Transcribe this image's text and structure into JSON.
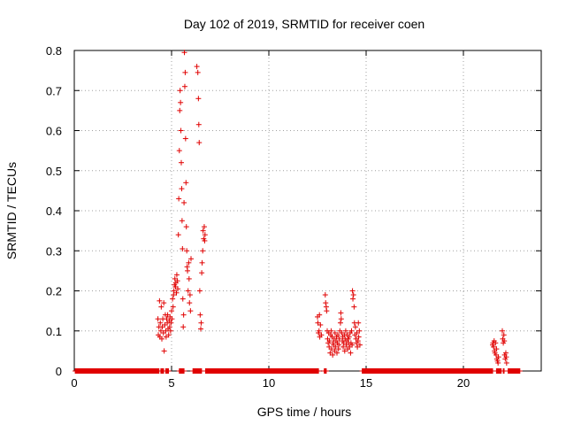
{
  "chart_data": {
    "type": "scatter",
    "title": "Day 102 of 2019, SRMTID for receiver coen",
    "xlabel": "GPS time / hours",
    "ylabel": "SRMTID / TECUs",
    "xlim": [
      0,
      24
    ],
    "ylim": [
      0,
      0.8
    ],
    "x_ticks": [
      0,
      5,
      10,
      15,
      20
    ],
    "x_tick_labels": [
      "0",
      "5",
      "10",
      "15",
      "20"
    ],
    "y_ticks": [
      0,
      0.1,
      0.2,
      0.3,
      0.4,
      0.5,
      0.6,
      0.7,
      0.8
    ],
    "y_tick_labels": [
      "0",
      "0.1",
      "0.2",
      "0.3",
      "0.4",
      "0.5",
      "0.6",
      "0.7",
      "0.8"
    ],
    "grid": true,
    "marker": "+",
    "color": "#e00000",
    "zero_baseline_segments": [
      [
        0.05,
        4.35
      ],
      [
        4.45,
        4.6
      ],
      [
        4.7,
        4.85
      ],
      [
        5.4,
        5.65
      ],
      [
        6.1,
        6.55
      ],
      [
        6.75,
        12.55
      ],
      [
        12.85,
        12.95
      ],
      [
        14.8,
        21.5
      ],
      [
        21.7,
        21.95
      ],
      [
        22.05,
        22.1
      ],
      [
        22.3,
        22.9
      ]
    ],
    "points": [
      [
        4.3,
        0.13
      ],
      [
        4.32,
        0.09
      ],
      [
        4.35,
        0.11
      ],
      [
        4.38,
        0.175
      ],
      [
        4.4,
        0.085
      ],
      [
        4.42,
        0.12
      ],
      [
        4.45,
        0.1
      ],
      [
        4.47,
        0.16
      ],
      [
        4.5,
        0.08
      ],
      [
        4.52,
        0.11
      ],
      [
        4.55,
        0.13
      ],
      [
        4.58,
        0.095
      ],
      [
        4.6,
        0.17
      ],
      [
        4.62,
        0.05
      ],
      [
        4.65,
        0.115
      ],
      [
        4.68,
        0.14
      ],
      [
        4.7,
        0.1
      ],
      [
        4.72,
        0.085
      ],
      [
        4.75,
        0.13
      ],
      [
        4.78,
        0.12
      ],
      [
        4.8,
        0.14
      ],
      [
        4.82,
        0.105
      ],
      [
        4.85,
        0.09
      ],
      [
        4.88,
        0.125
      ],
      [
        4.9,
        0.11
      ],
      [
        4.92,
        0.135
      ],
      [
        4.95,
        0.1
      ],
      [
        4.97,
        0.12
      ],
      [
        5.0,
        0.15
      ],
      [
        5.02,
        0.13
      ],
      [
        5.05,
        0.18
      ],
      [
        5.08,
        0.16
      ],
      [
        5.1,
        0.19
      ],
      [
        5.12,
        0.2
      ],
      [
        5.15,
        0.215
      ],
      [
        5.17,
        0.23
      ],
      [
        5.2,
        0.21
      ],
      [
        5.22,
        0.22
      ],
      [
        5.25,
        0.195
      ],
      [
        5.27,
        0.24
      ],
      [
        5.3,
        0.225
      ],
      [
        5.32,
        0.205
      ],
      [
        5.35,
        0.34
      ],
      [
        5.37,
        0.43
      ],
      [
        5.4,
        0.55
      ],
      [
        5.42,
        0.65
      ],
      [
        5.44,
        0.7
      ],
      [
        5.46,
        0.67
      ],
      [
        5.48,
        0.6
      ],
      [
        5.5,
        0.52
      ],
      [
        5.52,
        0.455
      ],
      [
        5.54,
        0.375
      ],
      [
        5.56,
        0.305
      ],
      [
        5.58,
        0.18
      ],
      [
        5.6,
        0.11
      ],
      [
        5.62,
        0.14
      ],
      [
        5.64,
        0.42
      ],
      [
        5.66,
        0.795
      ],
      [
        5.68,
        0.71
      ],
      [
        5.7,
        0.745
      ],
      [
        5.72,
        0.58
      ],
      [
        5.74,
        0.47
      ],
      [
        5.76,
        0.36
      ],
      [
        5.78,
        0.3
      ],
      [
        5.8,
        0.26
      ],
      [
        5.82,
        0.25
      ],
      [
        5.85,
        0.2
      ],
      [
        5.88,
        0.27
      ],
      [
        5.9,
        0.23
      ],
      [
        5.92,
        0.17
      ],
      [
        5.95,
        0.19
      ],
      [
        5.97,
        0.15
      ],
      [
        6.0,
        0.28
      ],
      [
        6.3,
        0.76
      ],
      [
        6.35,
        0.745
      ],
      [
        6.38,
        0.68
      ],
      [
        6.4,
        0.615
      ],
      [
        6.42,
        0.57
      ],
      [
        6.45,
        0.2
      ],
      [
        6.47,
        0.14
      ],
      [
        6.5,
        0.105
      ],
      [
        6.52,
        0.12
      ],
      [
        6.55,
        0.245
      ],
      [
        6.57,
        0.27
      ],
      [
        6.6,
        0.3
      ],
      [
        6.62,
        0.35
      ],
      [
        6.65,
        0.33
      ],
      [
        6.68,
        0.36
      ],
      [
        6.7,
        0.325
      ],
      [
        6.72,
        0.34
      ],
      [
        12.5,
        0.135
      ],
      [
        12.52,
        0.12
      ],
      [
        12.55,
        0.095
      ],
      [
        12.58,
        0.1
      ],
      [
        12.6,
        0.14
      ],
      [
        12.62,
        0.085
      ],
      [
        12.65,
        0.115
      ],
      [
        12.7,
        0.09
      ],
      [
        12.9,
        0.19
      ],
      [
        12.92,
        0.17
      ],
      [
        12.95,
        0.16
      ],
      [
        12.97,
        0.15
      ],
      [
        13.0,
        0.1
      ],
      [
        13.02,
        0.08
      ],
      [
        13.05,
        0.07
      ],
      [
        13.08,
        0.095
      ],
      [
        13.1,
        0.06
      ],
      [
        13.12,
        0.075
      ],
      [
        13.15,
        0.045
      ],
      [
        13.18,
        0.09
      ],
      [
        13.2,
        0.1
      ],
      [
        13.22,
        0.055
      ],
      [
        13.25,
        0.085
      ],
      [
        13.28,
        0.04
      ],
      [
        13.3,
        0.07
      ],
      [
        13.32,
        0.065
      ],
      [
        13.35,
        0.08
      ],
      [
        13.38,
        0.05
      ],
      [
        13.4,
        0.095
      ],
      [
        13.42,
        0.06
      ],
      [
        13.45,
        0.075
      ],
      [
        13.48,
        0.085
      ],
      [
        13.5,
        0.045
      ],
      [
        13.52,
        0.07
      ],
      [
        13.55,
        0.09
      ],
      [
        13.58,
        0.055
      ],
      [
        13.6,
        0.065
      ],
      [
        13.62,
        0.08
      ],
      [
        13.65,
        0.1
      ],
      [
        13.68,
        0.12
      ],
      [
        13.7,
        0.145
      ],
      [
        13.72,
        0.13
      ],
      [
        13.75,
        0.095
      ],
      [
        13.78,
        0.075
      ],
      [
        13.8,
        0.085
      ],
      [
        13.82,
        0.06
      ],
      [
        13.85,
        0.07
      ],
      [
        13.88,
        0.09
      ],
      [
        13.9,
        0.05
      ],
      [
        13.92,
        0.08
      ],
      [
        13.95,
        0.1
      ],
      [
        13.98,
        0.065
      ],
      [
        14.0,
        0.075
      ],
      [
        14.02,
        0.09
      ],
      [
        14.05,
        0.055
      ],
      [
        14.08,
        0.08
      ],
      [
        14.1,
        0.07
      ],
      [
        14.12,
        0.085
      ],
      [
        14.15,
        0.06
      ],
      [
        14.18,
        0.095
      ],
      [
        14.2,
        0.045
      ],
      [
        14.22,
        0.07
      ],
      [
        14.25,
        0.1
      ],
      [
        14.28,
        0.065
      ],
      [
        14.3,
        0.2
      ],
      [
        14.32,
        0.18
      ],
      [
        14.35,
        0.19
      ],
      [
        14.38,
        0.16
      ],
      [
        14.4,
        0.12
      ],
      [
        14.42,
        0.09
      ],
      [
        14.45,
        0.11
      ],
      [
        14.48,
        0.08
      ],
      [
        14.5,
        0.07
      ],
      [
        14.52,
        0.095
      ],
      [
        14.55,
        0.06
      ],
      [
        14.58,
        0.075
      ],
      [
        14.6,
        0.12
      ],
      [
        14.62,
        0.085
      ],
      [
        14.65,
        0.1
      ],
      [
        14.68,
        0.065
      ],
      [
        21.5,
        0.065
      ],
      [
        21.52,
        0.07
      ],
      [
        21.55,
        0.06
      ],
      [
        21.58,
        0.075
      ],
      [
        21.6,
        0.05
      ],
      [
        21.62,
        0.045
      ],
      [
        21.65,
        0.07
      ],
      [
        21.68,
        0.04
      ],
      [
        21.7,
        0.055
      ],
      [
        21.72,
        0.03
      ],
      [
        21.75,
        0.025
      ],
      [
        21.78,
        0.02
      ],
      [
        21.8,
        0.035
      ],
      [
        22.0,
        0.1
      ],
      [
        22.02,
        0.08
      ],
      [
        22.05,
        0.07
      ],
      [
        22.08,
        0.09
      ],
      [
        22.1,
        0.075
      ],
      [
        22.12,
        0.04
      ],
      [
        22.15,
        0.03
      ],
      [
        22.18,
        0.045
      ],
      [
        22.2,
        0.035
      ],
      [
        22.22,
        0.02
      ]
    ]
  }
}
